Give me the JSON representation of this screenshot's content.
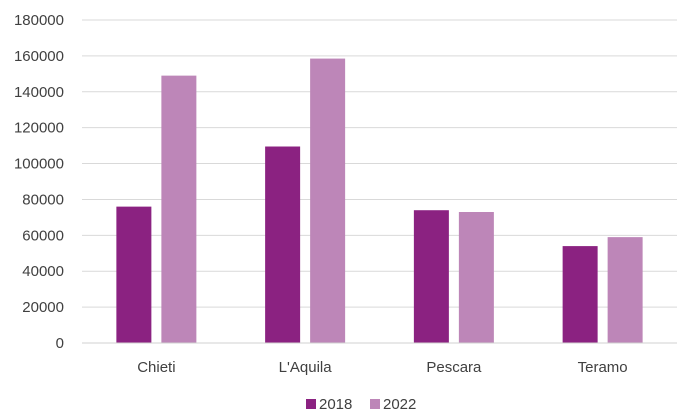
{
  "chart_data": {
    "type": "bar",
    "title": "",
    "xlabel": "",
    "ylabel": "",
    "categories": [
      "Chieti",
      "L'Aquila",
      "Pescara",
      "Teramo"
    ],
    "series": [
      {
        "name": "2018",
        "color": "#8B2281",
        "values": [
          76000,
          109500,
          74000,
          54000
        ]
      },
      {
        "name": "2022",
        "color": "#BD86B8",
        "values": [
          149000,
          158500,
          73000,
          59000
        ]
      }
    ],
    "ylim": [
      0,
      180000
    ],
    "yticks": [
      "0",
      "20000",
      "40000",
      "60000",
      "80000",
      "100000",
      "120000",
      "140000",
      "160000",
      "180000"
    ],
    "grid": true,
    "legend_position": "bottom"
  }
}
